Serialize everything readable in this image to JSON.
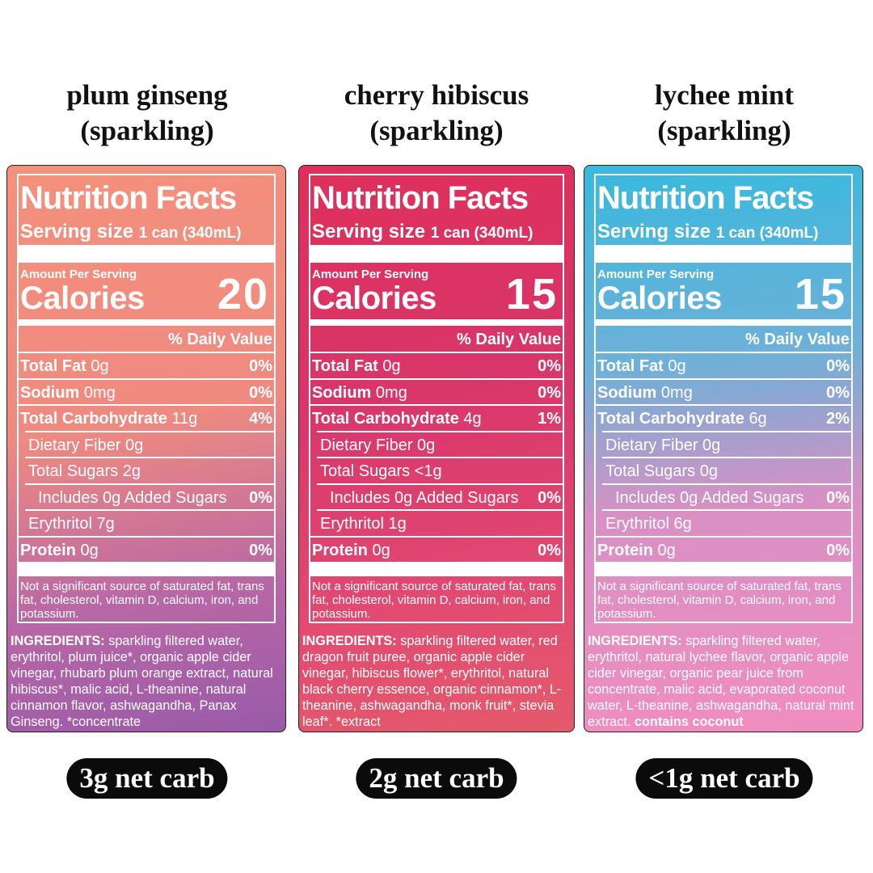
{
  "labels": {
    "heading": "Nutrition Facts",
    "serving_size": "Serving size",
    "amount_per_serving": "Amount Per Serving",
    "calories": "Calories",
    "daily_value": "% Daily Value",
    "footnote": "Not a significant source of saturated fat, trans fat, cholesterol, vitamin D, calcium, iron, and potassium.",
    "ingredients": "INGREDIENTS:"
  },
  "products": [
    {
      "title": [
        "plum ginseng",
        "(sparkling)"
      ],
      "serving": "1 can (340mL)",
      "calories": "20",
      "rows": [
        {
          "name": "Total Fat",
          "amount": "0g",
          "dv": "0%"
        },
        {
          "name": "Sodium",
          "amount": "0mg",
          "dv": "0%"
        },
        {
          "name": "Total Carbohydrate",
          "amount": "11g",
          "dv": "4%"
        },
        {
          "name": "Dietary Fiber 0g"
        },
        {
          "name": "Total Sugars 2g"
        },
        {
          "name": "Includes 0g Added Sugars",
          "dv": "0%"
        },
        {
          "name": "Erythritol 7g"
        },
        {
          "name": "Protein",
          "amount": "0g",
          "dv": "0%"
        }
      ],
      "ingredients": "sparkling filtered water, erythritol, plum juice*, organic apple cider vinegar, rhubarb plum orange extract, natural hibiscus*, malic acid, L-theanine, natural cinnamon flavor, ashwagandha, Panax Ginseng. *concentrate",
      "net_carb": "3g net carb"
    },
    {
      "title": [
        "cherry hibiscus",
        "(sparkling)"
      ],
      "serving": "1 can (340mL)",
      "calories": "15",
      "rows": [
        {
          "name": "Total Fat",
          "amount": "0g",
          "dv": "0%"
        },
        {
          "name": "Sodium",
          "amount": "0mg",
          "dv": "0%"
        },
        {
          "name": "Total Carbohydrate",
          "amount": "4g",
          "dv": "1%"
        },
        {
          "name": "Dietary Fiber 0g"
        },
        {
          "name": "Total Sugars <1g"
        },
        {
          "name": "Includes 0g Added Sugars",
          "dv": "0%"
        },
        {
          "name": "Erythritol 1g"
        },
        {
          "name": "Protein",
          "amount": "0g",
          "dv": "0%"
        }
      ],
      "ingredients": "sparkling filtered water, red dragon fruit puree, organic apple cider vinegar, hibiscus flower*, erythritol, natural black cherry essence, organic cinnamon*, L-theanine, ashwagandha, monk fruit*, stevia leaf*. *extract",
      "net_carb": "2g net carb"
    },
    {
      "title": [
        "lychee mint",
        "(sparkling)"
      ],
      "serving": "1 can (340mL)",
      "calories": "15",
      "rows": [
        {
          "name": "Total Fat",
          "amount": "0g",
          "dv": "0%"
        },
        {
          "name": "Sodium",
          "amount": "0mg",
          "dv": "0%"
        },
        {
          "name": "Total Carbohydrate",
          "amount": "6g",
          "dv": "2%"
        },
        {
          "name": "Dietary Fiber 0g"
        },
        {
          "name": "Total Sugars 0g"
        },
        {
          "name": "Includes 0g Added Sugars",
          "dv": "0%"
        },
        {
          "name": "Erythritol 6g"
        },
        {
          "name": "Protein",
          "amount": "0g",
          "dv": "0%"
        }
      ],
      "ingredients": "sparkling filtered water, erythritol, natural lychee flavor, organic apple cider vinegar, organic pear juice from concentrate, malic acid, evaporated coconut water, L-theanine, ashwagandha, natural mint extract.",
      "ingredients_note": "contains coconut",
      "net_carb": "<1g net carb"
    }
  ]
}
